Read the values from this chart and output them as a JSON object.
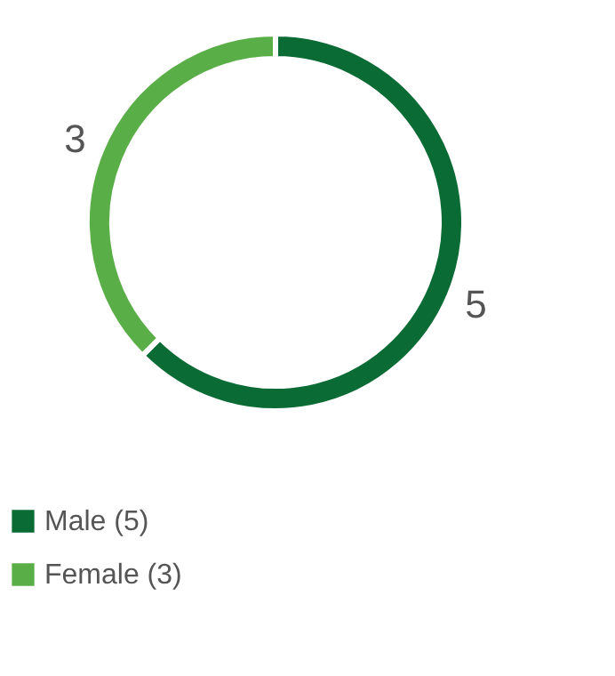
{
  "chart_data": {
    "type": "donut",
    "categories": [
      "Male (5)",
      "Female  (3)"
    ],
    "values": [
      5,
      3
    ],
    "colors": [
      "#0b6b35",
      "#5aae47"
    ],
    "data_labels": true,
    "legend": "bottom"
  }
}
